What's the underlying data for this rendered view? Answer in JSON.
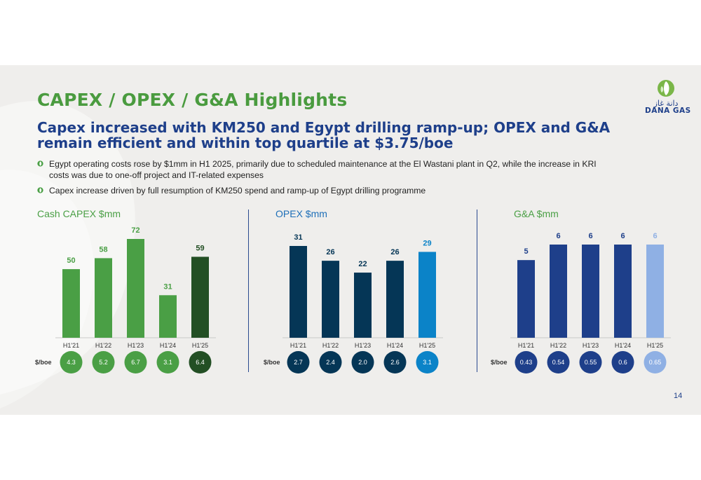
{
  "slide": {
    "title": "CAPEX / OPEX / G&A Highlights",
    "subtitle": "Capex increased with KM250 and Egypt drilling ramp-up; OPEX and G&A remain efficient and within top quartile at $3.75/boe",
    "bullets": [
      "Egypt operating costs rose by $1mm in H1 2025, primarily due to scheduled maintenance at the El Wastani plant in Q2, while the increase in KRI costs was due to one-off project and IT-related expenses",
      "Capex increase driven by full resumption of KM250 spend and ramp-up of Egypt drilling programme"
    ],
    "page_number": "14"
  },
  "logo": {
    "arabic_text": "دانة غاز",
    "latin_text": "DANA GAS",
    "colors": {
      "green": "#7ab648",
      "blue": "#1e3f8a"
    }
  },
  "chart_data": [
    {
      "type": "bar",
      "title": "Cash CAPEX $mm",
      "categories": [
        "H1'21",
        "H1'22",
        "H1'23",
        "H1'24",
        "H1'25"
      ],
      "values": [
        50,
        58,
        72,
        31,
        59
      ],
      "value_labels": [
        "50",
        "58",
        "72",
        "31",
        "59"
      ],
      "per_boe_label": "$/boe",
      "per_boe": [
        "4.3",
        "5.2",
        "6.7",
        "3.1",
        "6.4"
      ],
      "colors": [
        "#4a9f45",
        "#4a9f45",
        "#4a9f45",
        "#4a9f45",
        "#234f24"
      ],
      "label_colors": [
        "#4a9f45",
        "#4a9f45",
        "#4a9f45",
        "#4a9f45",
        "#234f24"
      ],
      "title_color": "#4a9f45",
      "ylim": [
        0,
        72
      ]
    },
    {
      "type": "bar",
      "title": "OPEX $mm",
      "categories": [
        "H1'21",
        "H1'22",
        "H1'23",
        "H1'24",
        "H1'25"
      ],
      "values": [
        31,
        26,
        22,
        26,
        29
      ],
      "value_labels": [
        "31",
        "26",
        "22",
        "26",
        "29"
      ],
      "per_boe_label": "$/boe",
      "per_boe": [
        "2.7",
        "2.4",
        "2.0",
        "2.6",
        "3.1"
      ],
      "colors": [
        "#053656",
        "#053656",
        "#053656",
        "#053656",
        "#0b83c8"
      ],
      "label_colors": [
        "#053656",
        "#053656",
        "#053656",
        "#053656",
        "#0b83c8"
      ],
      "title_color": "#1e6fb8",
      "ylim": [
        0,
        31
      ]
    },
    {
      "type": "bar",
      "title": "G&A $mm",
      "categories": [
        "H1'21",
        "H1'22",
        "H1'23",
        "H1'24",
        "H1'25"
      ],
      "values": [
        5,
        6,
        6,
        6,
        6
      ],
      "value_labels": [
        "5",
        "6",
        "6",
        "6",
        "6"
      ],
      "per_boe_label": "$/boe",
      "per_boe": [
        "0.43",
        "0.54",
        "0.55",
        "0.6",
        "0.65"
      ],
      "colors": [
        "#1e3f8a",
        "#1e3f8a",
        "#1e3f8a",
        "#1e3f8a",
        "#8fb0e4"
      ],
      "label_colors": [
        "#1e3f8a",
        "#1e3f8a",
        "#1e3f8a",
        "#1e3f8a",
        "#8fb0e4"
      ],
      "title_color": "#4a9f45",
      "ylim": [
        0,
        6
      ]
    }
  ]
}
